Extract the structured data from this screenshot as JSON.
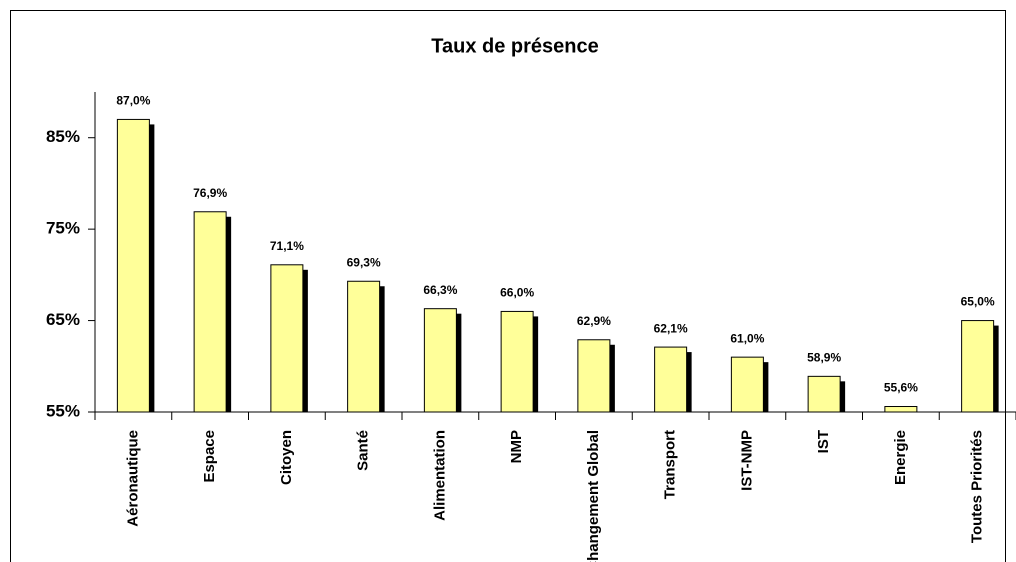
{
  "chart_data": {
    "type": "bar",
    "title": "Taux de présence",
    "categories": [
      "Aéronautique",
      "Espace",
      "Citoyen",
      "Santé",
      "Alimentation",
      "NMP",
      "Changement Global",
      "Transport",
      "IST-NMP",
      "IST",
      "Energie",
      "Toutes Priorités"
    ],
    "values": [
      87.0,
      76.9,
      71.1,
      69.3,
      66.3,
      66.0,
      62.9,
      62.1,
      61.0,
      58.9,
      55.6,
      65.0
    ],
    "value_labels": [
      "87,0%",
      "76,9%",
      "71,1%",
      "69,3%",
      "66,3%",
      "66,0%",
      "62,9%",
      "62,1%",
      "61,0%",
      "58,9%",
      "55,6%",
      "65,0%"
    ],
    "color": "#ffff99",
    "ylim": [
      55,
      90
    ],
    "yticks": [
      {
        "value": 55,
        "label": "55%"
      },
      {
        "value": 65,
        "label": "65%"
      },
      {
        "value": 75,
        "label": "75%"
      },
      {
        "value": 85,
        "label": "85%"
      }
    ],
    "grid": false
  }
}
